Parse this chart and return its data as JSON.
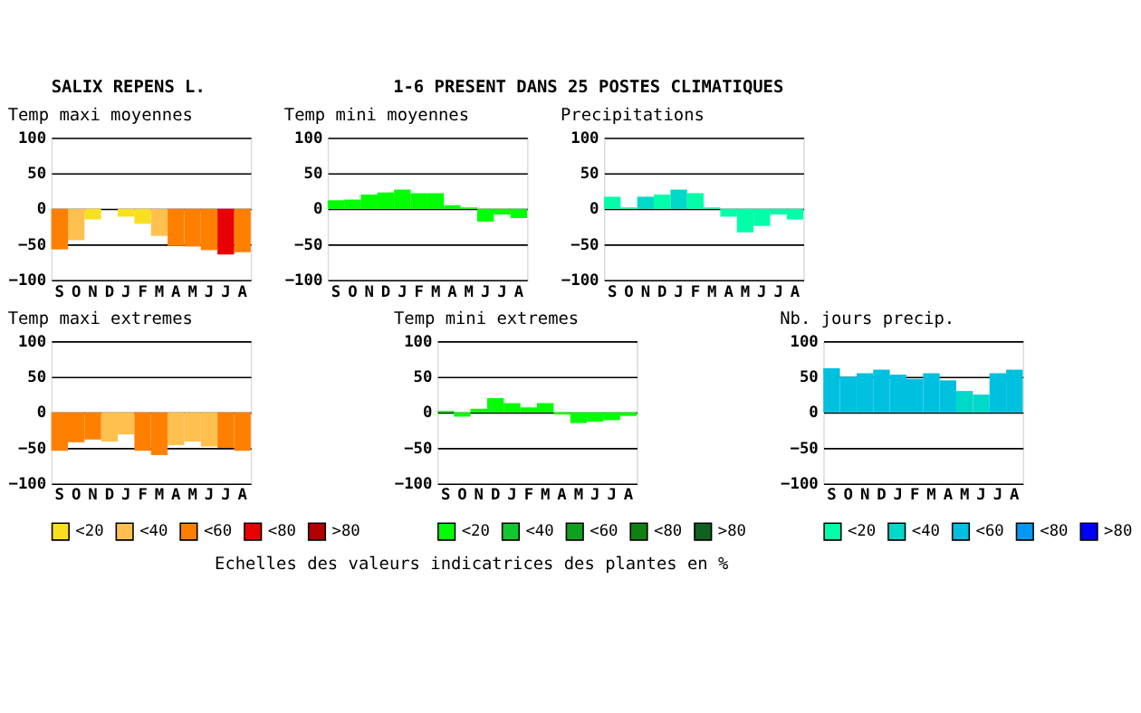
{
  "chart_data": [
    {
      "type": "bar",
      "title": "Temp maxi moyennes",
      "annotations": [
        "SALIX REPENS L.",
        "1-6 PRESENT DANS  25 POSTES CLIMATIQUES"
      ],
      "categories": [
        "S",
        "O",
        "N",
        "D",
        "J",
        "F",
        "M",
        "A",
        "M",
        "J",
        "J",
        "A"
      ],
      "ylim": [
        -100,
        100
      ],
      "yticks": [
        -100,
        -50,
        0,
        50,
        100
      ],
      "grid": "y",
      "legend": false,
      "series": [
        {
          "color": "#f8e020",
          "values": [
            null,
            null,
            -15,
            null,
            -11,
            -21,
            null,
            null,
            null,
            null,
            null,
            null
          ]
        },
        {
          "color": "#ffc050",
          "values": [
            null,
            -44,
            null,
            null,
            null,
            null,
            -38,
            null,
            null,
            null,
            null,
            null
          ]
        },
        {
          "color": "#ff8000",
          "values": [
            -57,
            null,
            null,
            null,
            null,
            null,
            null,
            -52,
            -53,
            -58,
            null,
            -61
          ]
        },
        {
          "color": "#e80000",
          "values": [
            null,
            null,
            null,
            null,
            null,
            null,
            null,
            null,
            null,
            null,
            -64,
            null
          ]
        }
      ]
    },
    {
      "type": "bar",
      "title": "Temp mini moyennes",
      "categories": [
        "S",
        "O",
        "N",
        "D",
        "J",
        "F",
        "M",
        "A",
        "M",
        "J",
        "J",
        "A"
      ],
      "ylim": [
        -100,
        100
      ],
      "yticks": [
        -100,
        -50,
        0,
        50,
        100
      ],
      "grid": "y",
      "legend": false,
      "series": [
        {
          "color": "#00ff00",
          "values": [
            12,
            13,
            20,
            23,
            27,
            22,
            22,
            5,
            2,
            -18,
            -8,
            -13
          ]
        }
      ]
    },
    {
      "type": "bar",
      "title": "Precipitations",
      "categories": [
        "S",
        "O",
        "N",
        "D",
        "J",
        "F",
        "M",
        "A",
        "M",
        "J",
        "J",
        "A"
      ],
      "ylim": [
        -100,
        100
      ],
      "yticks": [
        -100,
        -50,
        0,
        50,
        100
      ],
      "grid": "y",
      "legend": false,
      "series": [
        {
          "color": "#00ffa8",
          "values": [
            17,
            2,
            null,
            20,
            null,
            22,
            2,
            -11,
            -33,
            -24,
            -8,
            -15
          ]
        },
        {
          "color": "#00d8c8",
          "values": [
            null,
            null,
            17,
            null,
            27,
            null,
            null,
            null,
            null,
            null,
            null,
            null
          ]
        }
      ]
    },
    {
      "type": "bar",
      "title": "Temp maxi extremes",
      "categories": [
        "S",
        "O",
        "N",
        "D",
        "J",
        "F",
        "M",
        "A",
        "M",
        "J",
        "J",
        "A"
      ],
      "ylim": [
        -100,
        100
      ],
      "yticks": [
        -100,
        -50,
        0,
        50,
        100
      ],
      "grid": "y",
      "legend": "bottom",
      "series": [
        {
          "name": "<20",
          "color": "#f8e020",
          "values": [
            null,
            null,
            null,
            null,
            null,
            null,
            null,
            null,
            null,
            null,
            null,
            null
          ]
        },
        {
          "name": "<40",
          "color": "#ffc050",
          "values": [
            null,
            null,
            null,
            -41,
            -31,
            null,
            null,
            -46,
            -41,
            -48,
            null,
            null
          ]
        },
        {
          "name": "<60",
          "color": "#ff8000",
          "values": [
            -54,
            -42,
            -38,
            null,
            null,
            -54,
            -60,
            null,
            null,
            null,
            -50,
            -54
          ]
        },
        {
          "name": "<80",
          "color": "#e80000",
          "values": [
            null,
            null,
            null,
            null,
            null,
            null,
            null,
            null,
            null,
            null,
            null,
            null
          ]
        },
        {
          "name": ">80",
          "color": "#b00000",
          "values": [
            null,
            null,
            null,
            null,
            null,
            null,
            null,
            null,
            null,
            null,
            null,
            null
          ]
        }
      ]
    },
    {
      "type": "bar",
      "title": "Temp mini extremes",
      "categories": [
        "S",
        "O",
        "N",
        "D",
        "J",
        "F",
        "M",
        "A",
        "M",
        "J",
        "J",
        "A"
      ],
      "ylim": [
        -100,
        100
      ],
      "yticks": [
        -100,
        -50,
        0,
        50,
        100
      ],
      "grid": "y",
      "legend": "bottom",
      "series": [
        {
          "name": "<20",
          "color": "#00ff00",
          "values": [
            2,
            -6,
            5,
            20,
            13,
            7,
            13,
            -3,
            -15,
            -13,
            -11,
            -5
          ]
        },
        {
          "name": "<40",
          "color": "#10c830",
          "values": [
            null,
            null,
            null,
            null,
            null,
            null,
            null,
            null,
            null,
            null,
            null,
            null
          ]
        },
        {
          "name": "<60",
          "color": "#10a020",
          "values": [
            null,
            null,
            null,
            null,
            null,
            null,
            null,
            null,
            null,
            null,
            null,
            null
          ]
        },
        {
          "name": "<80",
          "color": "#108010",
          "values": [
            null,
            null,
            null,
            null,
            null,
            null,
            null,
            null,
            null,
            null,
            null,
            null
          ]
        },
        {
          "name": ">80",
          "color": "#106020",
          "values": [
            null,
            null,
            null,
            null,
            null,
            null,
            null,
            null,
            null,
            null,
            null,
            null
          ]
        }
      ]
    },
    {
      "type": "bar",
      "title": "Nb. jours precip.",
      "annotations": [
        "Echelles des valeurs indicatrices des plantes en %"
      ],
      "categories": [
        "S",
        "O",
        "N",
        "D",
        "J",
        "F",
        "M",
        "A",
        "M",
        "J",
        "J",
        "A"
      ],
      "ylim": [
        -100,
        100
      ],
      "yticks": [
        -100,
        -50,
        0,
        50,
        100
      ],
      "grid": "y",
      "legend": "bottom",
      "series": [
        {
          "name": "<20",
          "color": "#00ffa8",
          "values": [
            null,
            null,
            null,
            null,
            null,
            null,
            null,
            null,
            null,
            null,
            null,
            null
          ]
        },
        {
          "name": "<40",
          "color": "#00d8c8",
          "values": [
            null,
            null,
            null,
            null,
            null,
            null,
            null,
            null,
            30,
            25,
            null,
            null
          ]
        },
        {
          "name": "<60",
          "color": "#00c0e0",
          "values": [
            62,
            50,
            55,
            60,
            53,
            47,
            55,
            45,
            null,
            null,
            55,
            60
          ]
        },
        {
          "name": "<80",
          "color": "#0098f0",
          "values": [
            null,
            null,
            null,
            null,
            null,
            null,
            null,
            null,
            null,
            null,
            null,
            null
          ]
        },
        {
          "name": ">80",
          "color": "#0000f8",
          "values": [
            null,
            null,
            null,
            null,
            null,
            null,
            null,
            null,
            null,
            null,
            null,
            null
          ]
        }
      ]
    }
  ]
}
